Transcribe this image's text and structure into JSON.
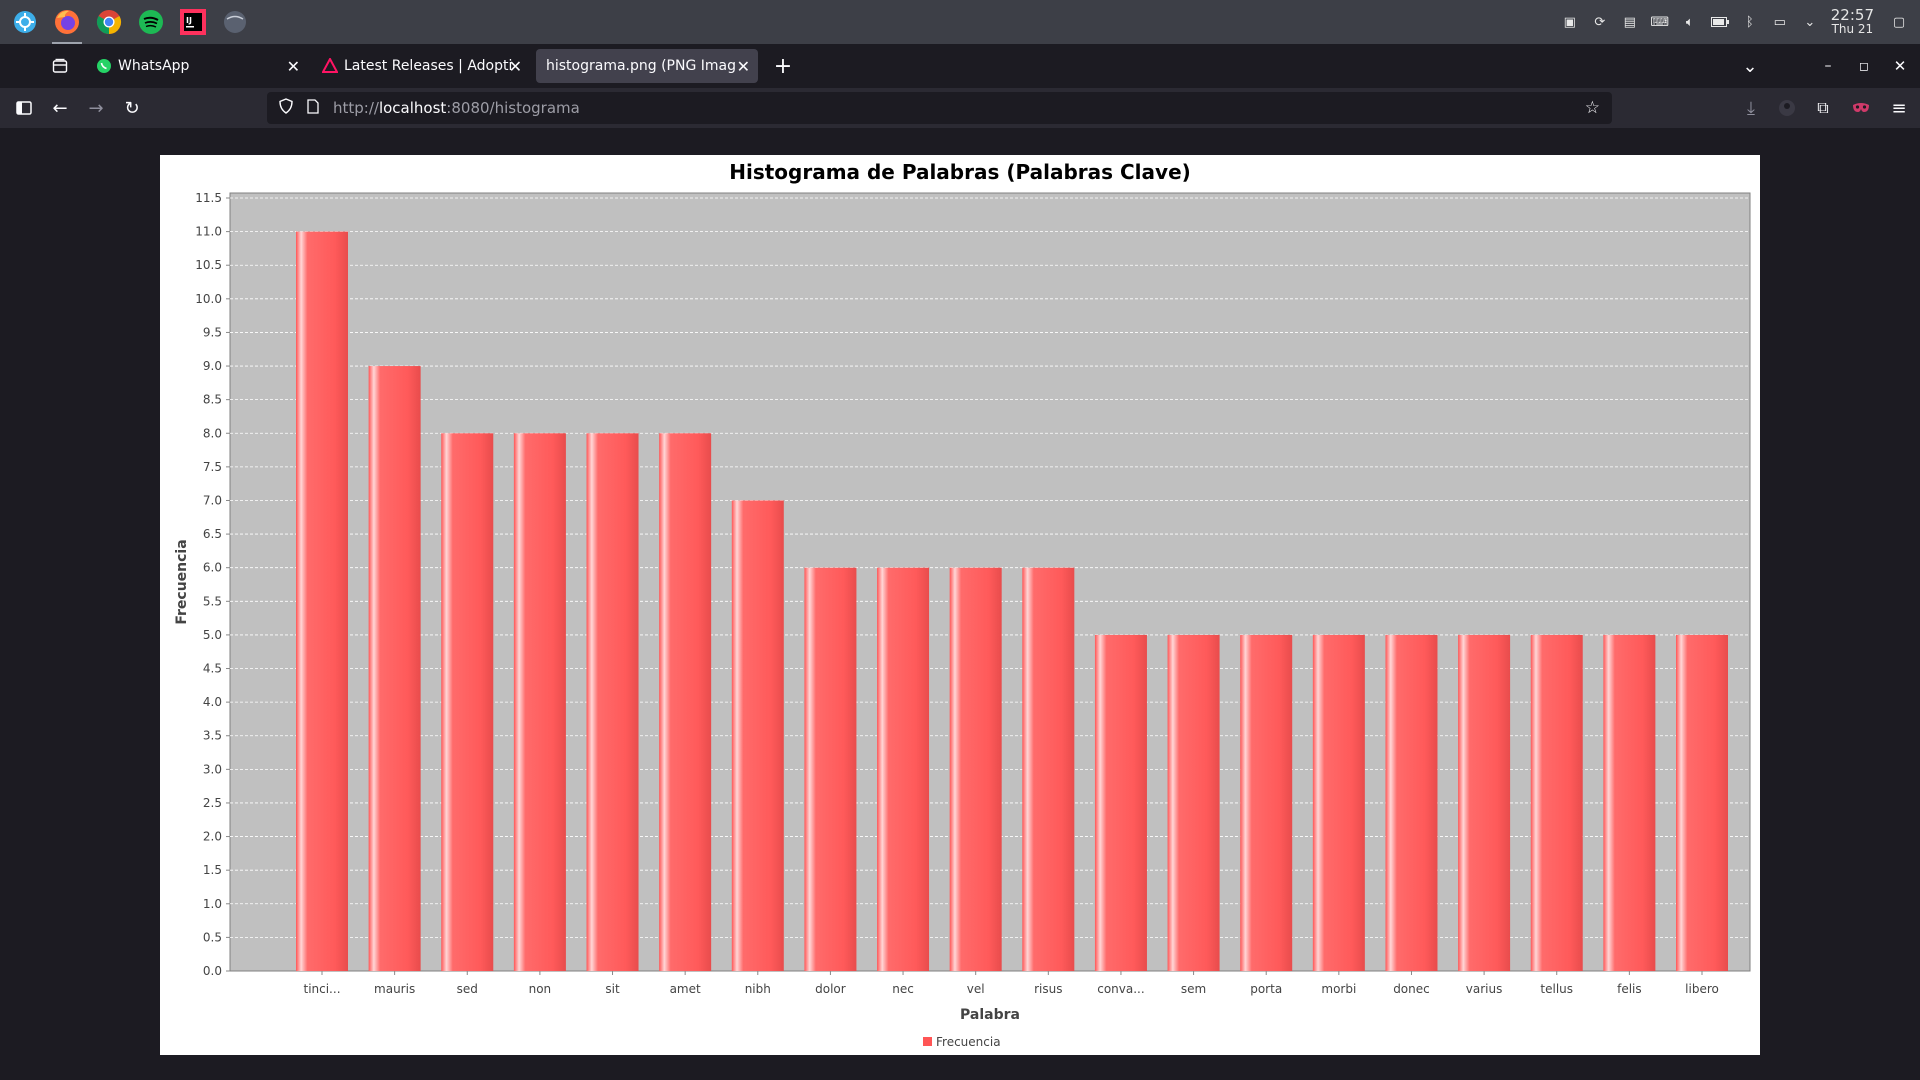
{
  "taskbar": {
    "apps": [
      {
        "name": "Start menu",
        "icon": "kde-launcher-icon"
      },
      {
        "name": "Firefox",
        "icon": "firefox-icon"
      },
      {
        "name": "Chrome",
        "icon": "chrome-icon"
      },
      {
        "name": "Spotify",
        "icon": "spotify-icon"
      },
      {
        "name": "IntelliJ IDEA",
        "icon": "intellij-icon"
      },
      {
        "name": "Other app",
        "icon": "app-circle-icon"
      }
    ],
    "clock": {
      "time": "22:57",
      "date": "Thu 21"
    }
  },
  "browser": {
    "tabs": [
      {
        "title": "WhatsApp",
        "icon": "whatsapp-icon"
      },
      {
        "title": "Latest Releases | Adoptium",
        "icon": "adoptium-icon"
      },
      {
        "title": "histograma.png (PNG Image,",
        "icon": "none"
      }
    ],
    "url": {
      "scheme": "http://",
      "host": "localhost",
      "rest": ":8080/histograma"
    }
  },
  "chart_data": {
    "type": "bar",
    "title": "Histograma de Palabras (Palabras Clave)",
    "xlabel": "Palabra",
    "ylabel": "Frecuencia",
    "categories": [
      "tinci...",
      "mauris",
      "sed",
      "non",
      "sit",
      "amet",
      "nibh",
      "dolor",
      "nec",
      "vel",
      "risus",
      "conva...",
      "sem",
      "porta",
      "morbi",
      "donec",
      "varius",
      "tellus",
      "felis",
      "libero"
    ],
    "series": [
      {
        "name": "Frecuencia",
        "values": [
          11,
          9,
          8,
          8,
          8,
          8,
          7,
          6,
          6,
          6,
          6,
          5,
          5,
          5,
          5,
          5,
          5,
          5,
          5,
          5
        ]
      }
    ],
    "ylim": [
      0,
      11.5
    ],
    "yticks": [
      "0.0",
      "0.5",
      "1.0",
      "1.5",
      "2.0",
      "2.5",
      "3.0",
      "3.5",
      "4.0",
      "4.5",
      "5.0",
      "5.5",
      "6.0",
      "6.5",
      "7.0",
      "7.5",
      "8.0",
      "8.5",
      "9.0",
      "9.5",
      "10.0",
      "10.5",
      "11.0",
      "11.5"
    ],
    "grid": true,
    "legend": "bottom-center",
    "colors": {
      "bar": "#ff5555",
      "plot_bg": "#c0c0c0"
    }
  }
}
